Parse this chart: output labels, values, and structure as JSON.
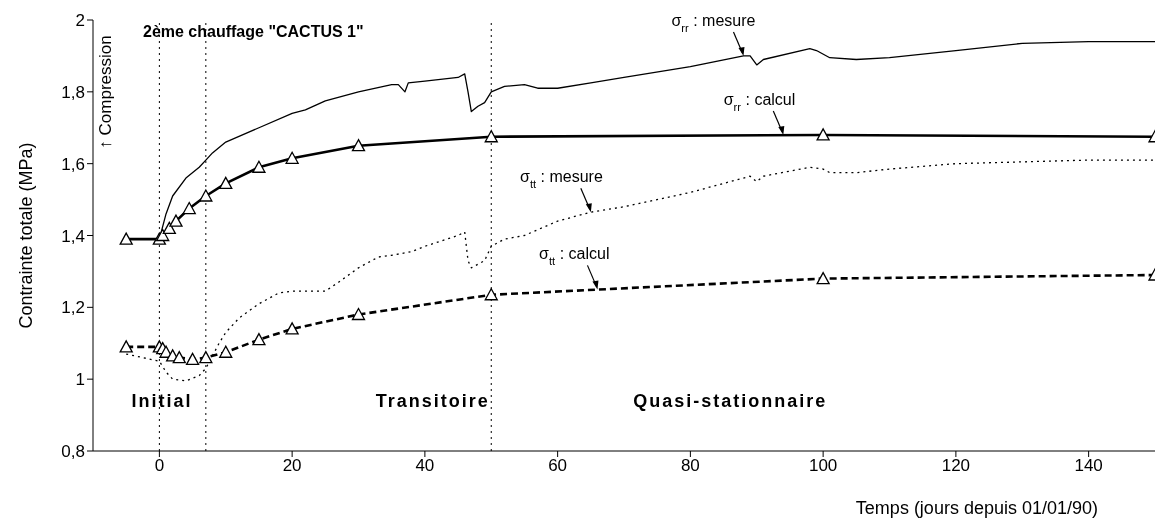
{
  "chart_data": {
    "type": "line",
    "title": "2ème chauffage \"CACTUS 1\"",
    "xlabel": "Temps (jours depuis 01/01/90)",
    "ylabel": "Contrainte totale (MPa)",
    "xlim": [
      -10,
      150
    ],
    "xticks": [
      0,
      20,
      40,
      60,
      80,
      100,
      120,
      140
    ],
    "ylim": [
      0.8,
      2
    ],
    "yticks": [
      {
        "value": 0.8,
        "label": "0,8"
      },
      {
        "value": 1,
        "label": "1"
      },
      {
        "value": 1.2,
        "label": "1,2"
      },
      {
        "value": 1.4,
        "label": "1,4"
      },
      {
        "value": 1.6,
        "label": "1,6"
      },
      {
        "value": 1.8,
        "label": "1,8"
      },
      {
        "value": 2,
        "label": "2"
      }
    ],
    "grid": false,
    "legend": false,
    "series": [
      {
        "color": "#000000",
        "marker": "none",
        "line_style": "solid",
        "x": [
          -5,
          0,
          1,
          2,
          4,
          6,
          7,
          8,
          10,
          15,
          20,
          22,
          25,
          30,
          35,
          36,
          37,
          37.5,
          40,
          45,
          46,
          46.5,
          47,
          48,
          49,
          50,
          52,
          55,
          57,
          60,
          65,
          70,
          80,
          88,
          89,
          90,
          91,
          98,
          99,
          101,
          105,
          110,
          120,
          130,
          140,
          150
        ],
        "values": [
          1.39,
          1.39,
          1.46,
          1.51,
          1.56,
          1.59,
          1.61,
          1.63,
          1.66,
          1.7,
          1.74,
          1.75,
          1.775,
          1.8,
          1.82,
          1.82,
          1.8,
          1.825,
          1.83,
          1.84,
          1.85,
          1.8,
          1.745,
          1.76,
          1.77,
          1.8,
          1.815,
          1.82,
          1.81,
          1.81,
          1.825,
          1.84,
          1.87,
          1.9,
          1.9,
          1.875,
          1.89,
          1.92,
          1.915,
          1.895,
          1.89,
          1.895,
          1.915,
          1.935,
          1.94,
          1.94
        ]
      },
      {
        "color": "#000000",
        "marker": "triangle",
        "line_style": "solid",
        "x": [
          -5,
          0,
          0.5,
          1.5,
          2.5,
          4.5,
          7,
          10,
          15,
          20,
          30,
          50,
          100,
          150
        ],
        "values": [
          1.39,
          1.39,
          1.4,
          1.42,
          1.44,
          1.475,
          1.51,
          1.545,
          1.59,
          1.615,
          1.65,
          1.675,
          1.68,
          1.675
        ]
      },
      {
        "color": "#000000",
        "marker": "none",
        "line_style": "dotted",
        "x": [
          -5,
          0,
          1,
          2,
          4,
          6,
          7,
          9,
          10,
          12,
          15,
          18,
          20,
          25,
          27,
          30,
          33,
          35,
          38,
          40,
          45,
          46,
          46.5,
          47,
          48,
          49,
          50,
          52,
          55,
          60,
          65,
          70,
          80,
          88,
          89,
          90,
          91,
          98,
          100,
          101,
          105,
          110,
          120,
          130,
          140,
          150
        ],
        "values": [
          1.07,
          1.05,
          1.02,
          1.0,
          0.995,
          1.01,
          1.03,
          1.1,
          1.13,
          1.17,
          1.21,
          1.24,
          1.245,
          1.245,
          1.27,
          1.31,
          1.34,
          1.345,
          1.355,
          1.37,
          1.4,
          1.41,
          1.33,
          1.31,
          1.32,
          1.33,
          1.37,
          1.39,
          1.4,
          1.44,
          1.465,
          1.48,
          1.52,
          1.56,
          1.565,
          1.55,
          1.565,
          1.59,
          1.585,
          1.575,
          1.575,
          1.585,
          1.6,
          1.605,
          1.61,
          1.61
        ]
      },
      {
        "color": "#000000",
        "marker": "triangle",
        "line_style": "dashed",
        "x": [
          -5,
          0,
          0.5,
          1,
          2,
          3,
          5,
          7,
          10,
          15,
          20,
          30,
          50,
          100,
          150
        ],
        "values": [
          1.09,
          1.09,
          1.085,
          1.075,
          1.065,
          1.06,
          1.055,
          1.06,
          1.075,
          1.11,
          1.14,
          1.18,
          1.235,
          1.28,
          1.29
        ]
      }
    ],
    "ref_lines": [
      {
        "axis": "x",
        "value": 0,
        "line_style": "dotted"
      },
      {
        "axis": "x",
        "value": 7,
        "line_style": "dotted"
      },
      {
        "axis": "x",
        "value": 50,
        "line_style": "dotted"
      }
    ],
    "annotations": [
      "↑ Compression",
      {
        "text": "σ$_{rr}$ : mesure",
        "x": 88,
        "y": 1.9
      },
      {
        "text": "σ$_{rr}$ : calcul",
        "x": 94,
        "y": 1.68
      },
      {
        "text": "σ$_{tt}$ : mesure",
        "x": 65,
        "y": 1.465
      },
      {
        "text": "σ$_{tt}$ : calcul",
        "x": 66,
        "y": 1.25
      },
      "Initial",
      "Transitoire",
      "Quasi-stationnaire"
    ]
  }
}
